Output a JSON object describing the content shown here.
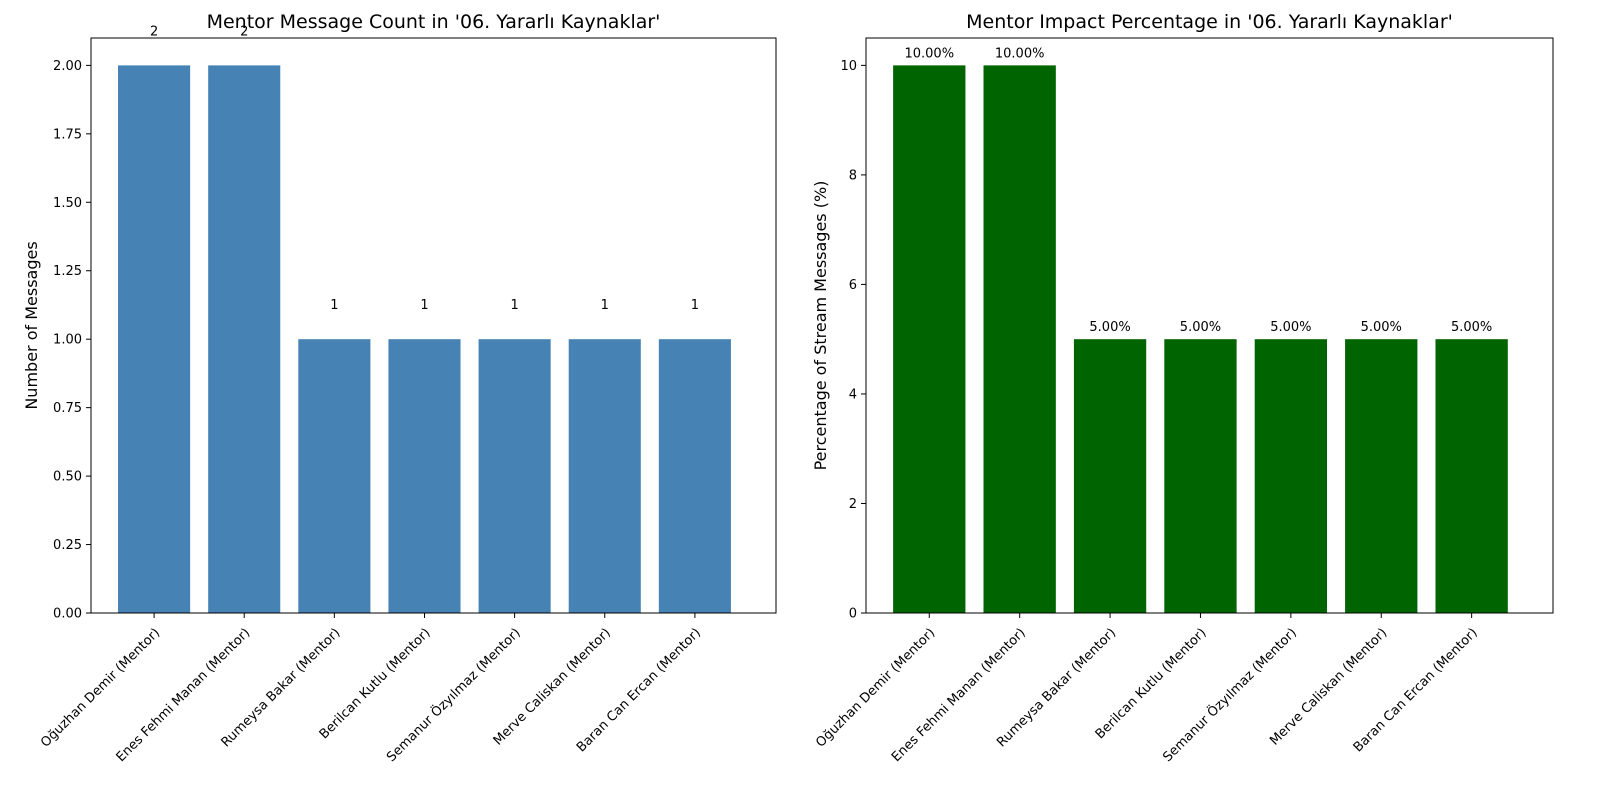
{
  "chart_data": [
    {
      "type": "bar",
      "title": "Mentor Message Count in '06. Yararlı Kaynaklar'",
      "xlabel": "",
      "ylabel": "Number of Messages",
      "categories": [
        "Oğuzhan Demir (Mentor)",
        "Enes Fehmi Manan (Mentor)",
        "Rumeysa Bakar (Mentor)",
        "Berilcan Kutlu (Mentor)",
        "Semanur Özyılmaz (Mentor)",
        "Merve Caliskan (Mentor)",
        "Baran Can Ercan (Mentor)"
      ],
      "values": [
        2,
        2,
        1,
        1,
        1,
        1,
        1
      ],
      "data_labels": [
        "2",
        "2",
        "1",
        "1",
        "1",
        "1",
        "1"
      ],
      "yticks": [
        0,
        0.25,
        0.5,
        0.75,
        1.0,
        1.25,
        1.5,
        1.75,
        2.0
      ],
      "ytick_labels": [
        "0.00",
        "0.25",
        "0.50",
        "0.75",
        "1.00",
        "1.25",
        "1.50",
        "1.75",
        "2.00"
      ],
      "ylim": [
        0,
        2.1
      ],
      "color": "#4682b4",
      "grid": false,
      "legend": "none"
    },
    {
      "type": "bar",
      "title": "Mentor Impact Percentage in '06. Yararlı Kaynaklar'",
      "xlabel": "",
      "ylabel": "Percentage of Stream Messages (%)",
      "categories": [
        "Oğuzhan Demir (Mentor)",
        "Enes Fehmi Manan (Mentor)",
        "Rumeysa Bakar (Mentor)",
        "Berilcan Kutlu (Mentor)",
        "Semanur Özyılmaz (Mentor)",
        "Merve Caliskan (Mentor)",
        "Baran Can Ercan (Mentor)"
      ],
      "values": [
        10,
        10,
        5,
        5,
        5,
        5,
        5
      ],
      "data_labels": [
        "10.00%",
        "10.00%",
        "5.00%",
        "5.00%",
        "5.00%",
        "5.00%",
        "5.00%"
      ],
      "yticks": [
        0,
        2,
        4,
        6,
        8,
        10
      ],
      "ytick_labels": [
        "0",
        "2",
        "4",
        "6",
        "8",
        "10"
      ],
      "ylim": [
        0,
        10.5
      ],
      "color": "#006400",
      "grid": false,
      "legend": "none"
    }
  ]
}
